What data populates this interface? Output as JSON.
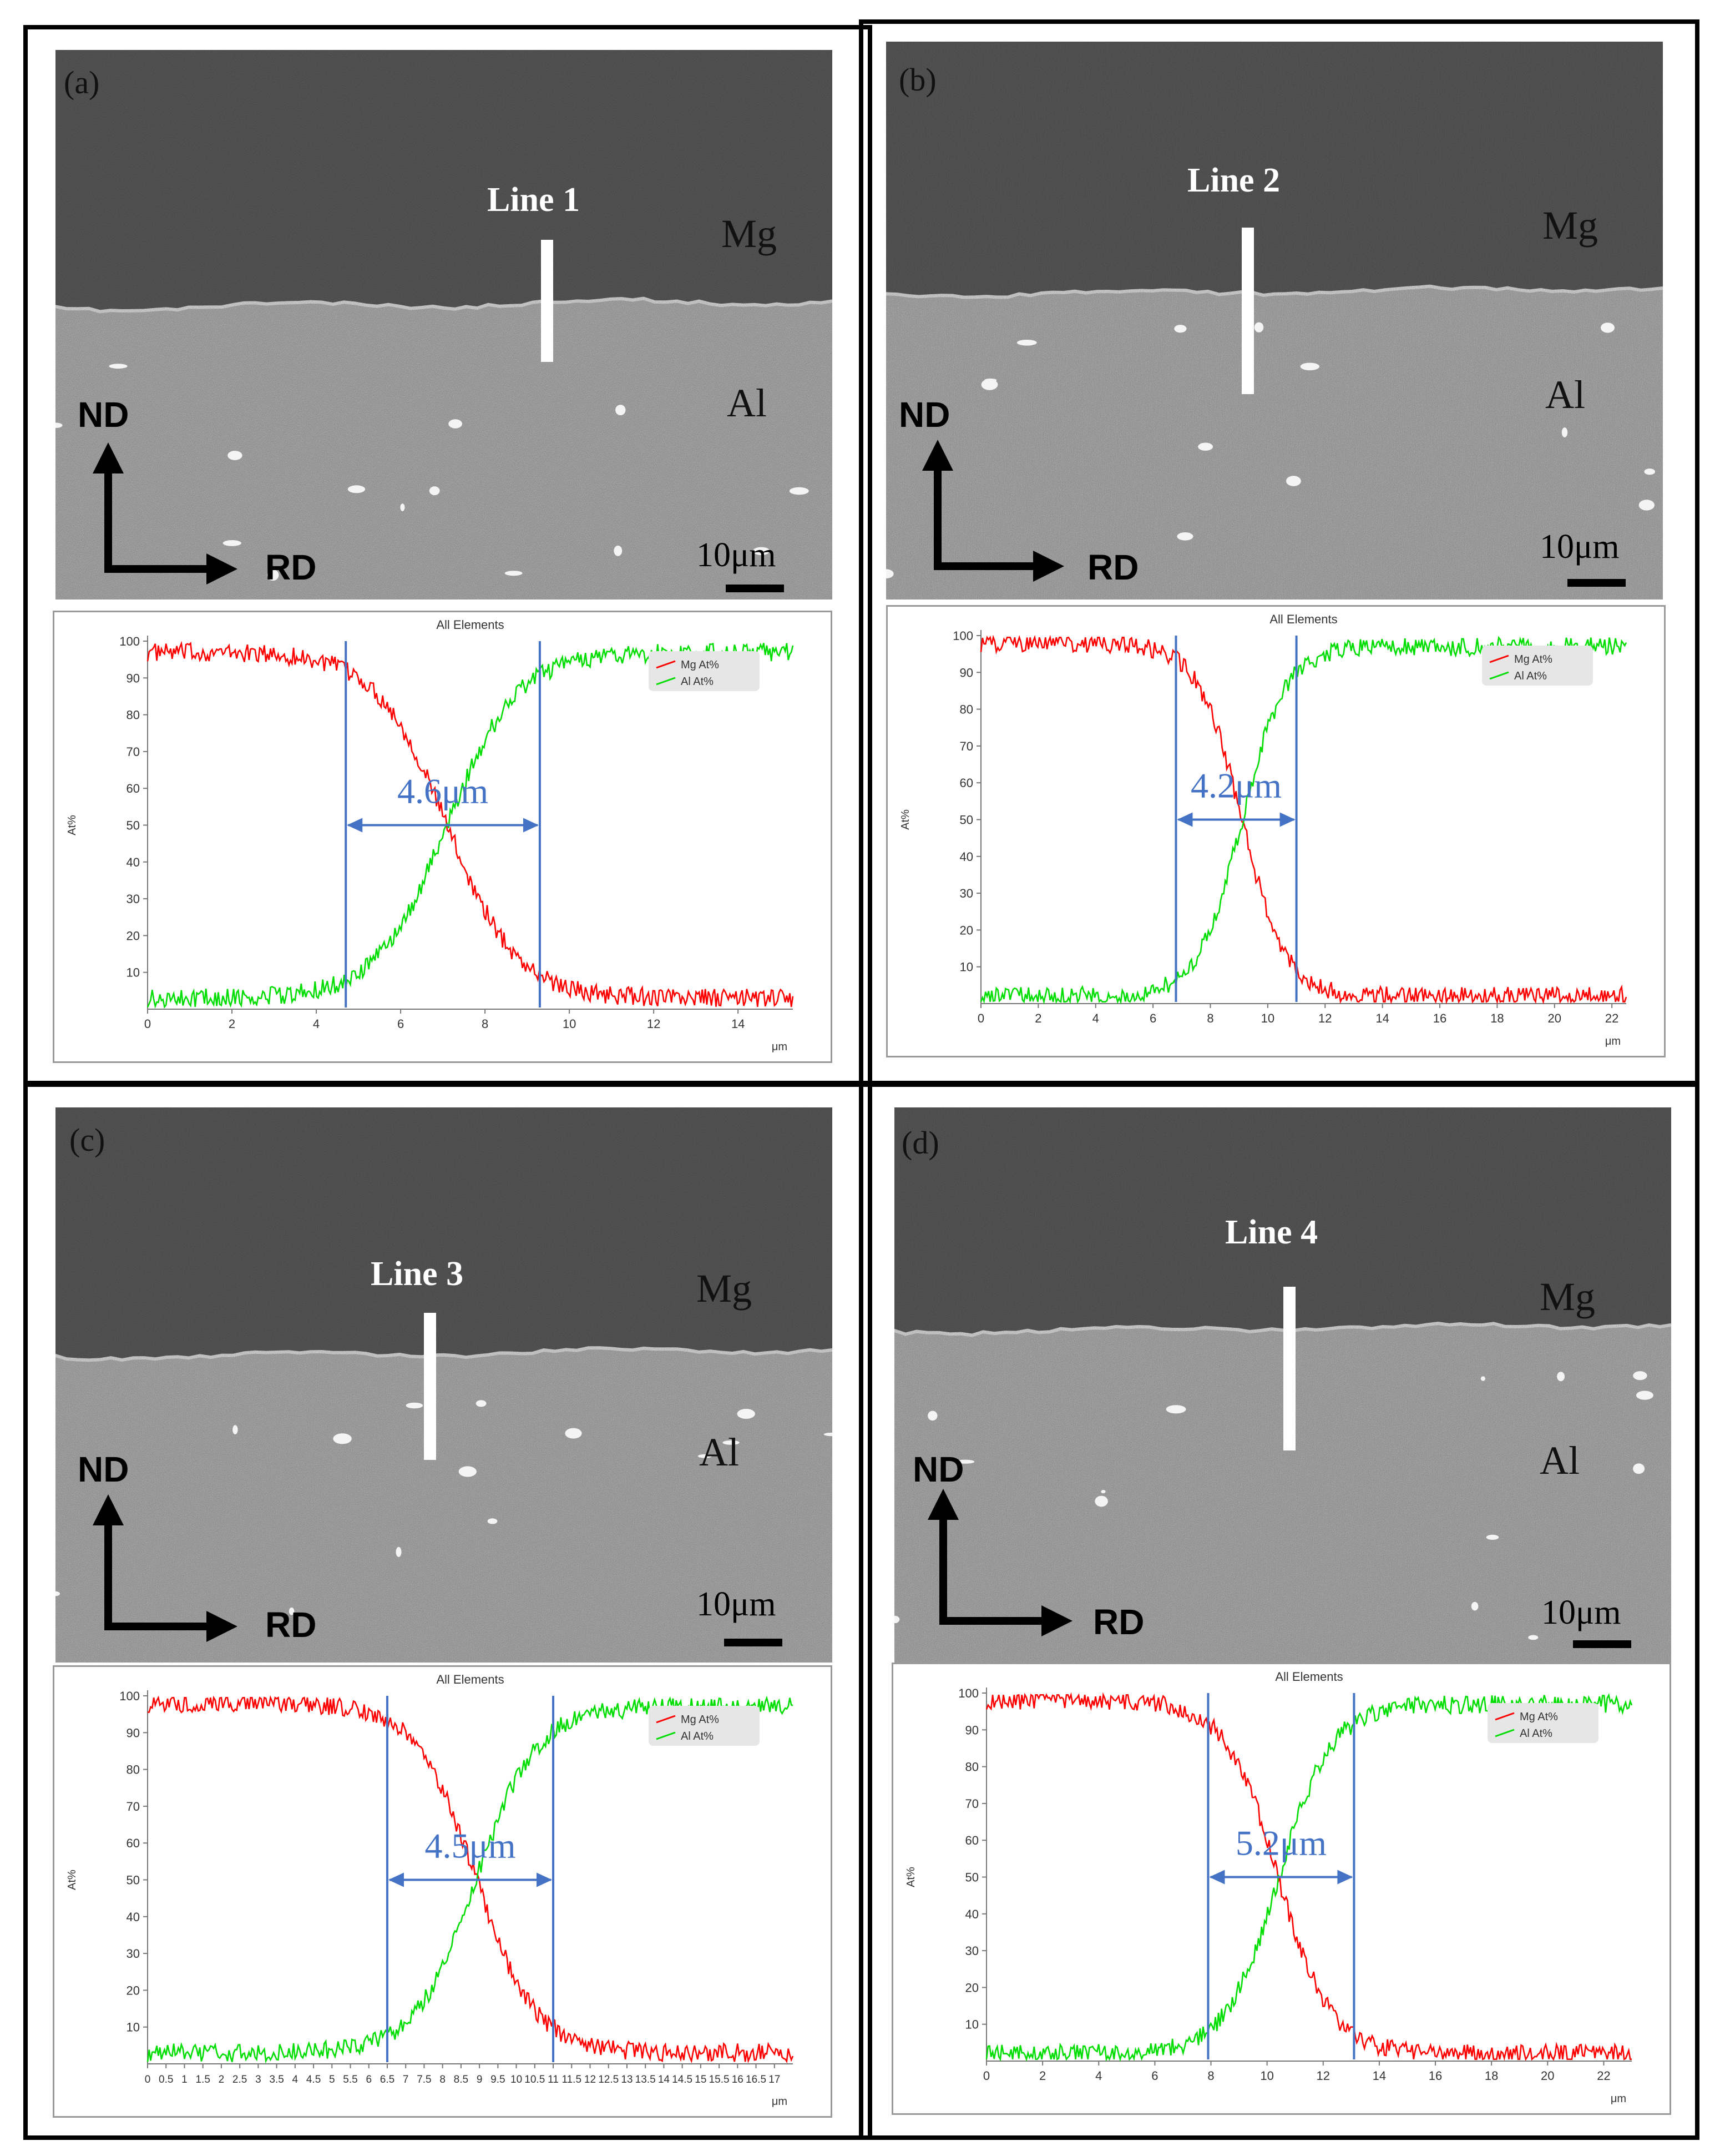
{
  "panels": [
    {
      "id": "a",
      "label": "(a)",
      "line_label": "Line 1",
      "phase_top": "Mg",
      "phase_bottom": "Al",
      "nd_label": "ND",
      "rd_label": "RD",
      "scale_label": "10μm",
      "chart_data": {
        "type": "line",
        "title": "All Elements",
        "ylabel": "At%",
        "xlabel": "μm",
        "xlim": [
          0,
          15.3
        ],
        "ylim": [
          0,
          100
        ],
        "xticks": [
          0,
          2,
          4,
          6,
          8,
          10,
          12,
          14
        ],
        "yticks": [
          10,
          20,
          30,
          40,
          50,
          60,
          70,
          80,
          90,
          100
        ],
        "series": [
          {
            "name": "Mg At%",
            "color": "#ff0000",
            "profile": "decreasing",
            "start": 97,
            "end": 3,
            "center": 7.1
          },
          {
            "name": "Al At%",
            "color": "#00dd00",
            "profile": "increasing",
            "start": 3,
            "end": 97,
            "center": 7.1
          }
        ],
        "markers": [
          4.7,
          9.3
        ],
        "annotation": "4.6μm",
        "legend": "top-right"
      }
    },
    {
      "id": "b",
      "label": "(b)",
      "line_label": "Line 2",
      "phase_top": "Mg",
      "phase_bottom": "Al",
      "nd_label": "ND",
      "rd_label": "RD",
      "scale_label": "10μm",
      "chart_data": {
        "type": "line",
        "title": "All Elements",
        "ylabel": "At%",
        "xlabel": "μm",
        "xlim": [
          0,
          22.5
        ],
        "ylim": [
          0,
          100
        ],
        "xticks": [
          0,
          2,
          4,
          6,
          8,
          10,
          12,
          14,
          16,
          18,
          20,
          22
        ],
        "yticks": [
          10,
          20,
          30,
          40,
          50,
          60,
          70,
          80,
          90,
          100
        ],
        "series": [
          {
            "name": "Mg At%",
            "color": "#ff0000",
            "profile": "decreasing",
            "start": 98,
            "end": 2,
            "center": 9.1
          },
          {
            "name": "Al At%",
            "color": "#00dd00",
            "profile": "increasing",
            "start": 2,
            "end": 97,
            "center": 9.1
          }
        ],
        "markers": [
          6.8,
          11.0
        ],
        "annotation": "4.2μm",
        "legend": "top-right"
      }
    },
    {
      "id": "c",
      "label": "(c)",
      "line_label": "Line 3",
      "phase_top": "Mg",
      "phase_bottom": "Al",
      "nd_label": "ND",
      "rd_label": "RD",
      "scale_label": "10μm",
      "chart_data": {
        "type": "line",
        "title": "All Elements",
        "ylabel": "At%",
        "xlabel": "μm",
        "xlim": [
          0,
          17.5
        ],
        "ylim": [
          0,
          100
        ],
        "xticks": [
          0,
          0.5,
          1,
          1.5,
          2,
          2.5,
          3,
          3.5,
          4,
          4.5,
          5,
          5.5,
          6,
          6.5,
          7,
          7.5,
          8,
          8.5,
          9,
          9.5,
          10,
          10.5,
          11,
          11.5,
          12,
          12.5,
          13,
          13.5,
          14,
          14.5,
          15,
          15.5,
          16,
          16.5,
          17
        ],
        "yticks": [
          10,
          20,
          30,
          40,
          50,
          60,
          70,
          80,
          90,
          100
        ],
        "series": [
          {
            "name": "Mg At%",
            "color": "#ff0000",
            "profile": "decreasing",
            "start": 98,
            "end": 3,
            "center": 8.9
          },
          {
            "name": "Al At%",
            "color": "#00dd00",
            "profile": "increasing",
            "start": 3,
            "end": 97,
            "center": 8.9
          }
        ],
        "markers": [
          6.5,
          11.0
        ],
        "annotation": "4.5μm",
        "legend": "top-right"
      }
    },
    {
      "id": "d",
      "label": "(d)",
      "line_label": "Line 4",
      "phase_top": "Mg",
      "phase_bottom": "Al",
      "nd_label": "ND",
      "rd_label": "RD",
      "scale_label": "10μm",
      "chart_data": {
        "type": "line",
        "title": "All Elements",
        "ylabel": "At%",
        "xlabel": "μm",
        "xlim": [
          0,
          23
        ],
        "ylim": [
          0,
          100
        ],
        "xticks": [
          0,
          2,
          4,
          6,
          8,
          10,
          12,
          14,
          16,
          18,
          20,
          22
        ],
        "yticks": [
          10,
          20,
          30,
          40,
          50,
          60,
          70,
          80,
          90,
          100
        ],
        "series": [
          {
            "name": "Mg At%",
            "color": "#ff0000",
            "profile": "decreasing",
            "start": 98,
            "end": 2,
            "center": 10.4
          },
          {
            "name": "Al At%",
            "color": "#00dd00",
            "profile": "increasing",
            "start": 2,
            "end": 97,
            "center": 10.4
          }
        ],
        "markers": [
          7.9,
          13.1
        ],
        "annotation": "5.2μm",
        "legend": "top-right"
      }
    }
  ]
}
